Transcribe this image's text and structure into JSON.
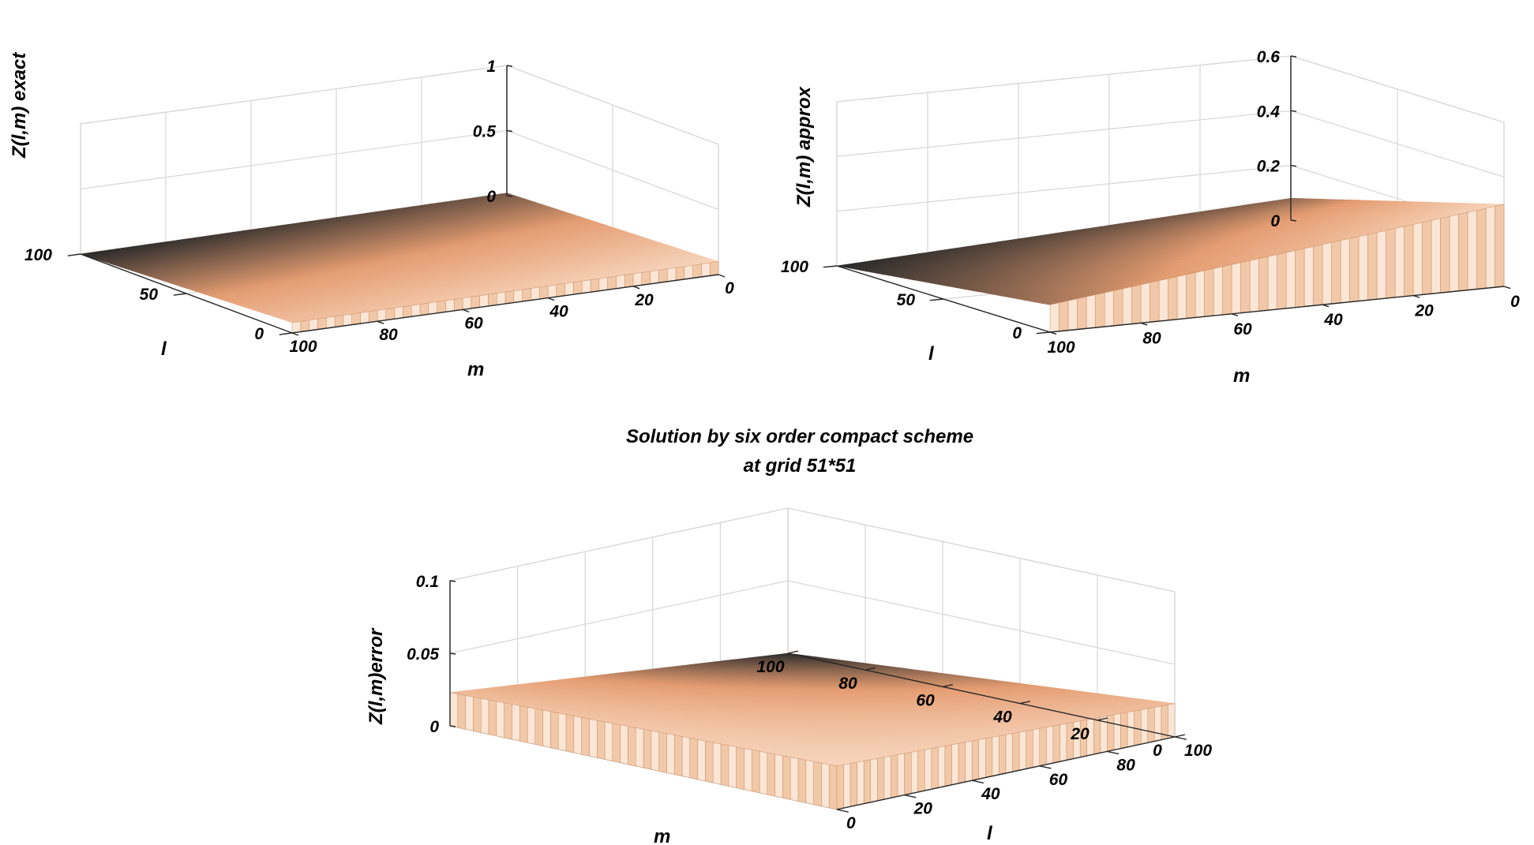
{
  "chart_data": [
    {
      "type": "surface3d",
      "name": "exact",
      "zlabel": "Z(l,m) exact",
      "xlabel": "m",
      "ylabel": "l",
      "zlim": [
        0,
        1
      ],
      "zticks": [
        "0",
        "0.5",
        "1"
      ],
      "m_ticks": [
        "0",
        "20",
        "40",
        "60",
        "80",
        "100"
      ],
      "l_ticks": [
        "0",
        "50",
        "100"
      ],
      "z_corners": {
        "m0_l0": 0.1,
        "m100_l0": 0.08,
        "m100_l100": 0.0,
        "m0_l100": 0.02
      }
    },
    {
      "type": "surface3d",
      "name": "approx",
      "zlabel": "Z(l,m) approx",
      "xlabel": "m",
      "ylabel": "l",
      "zlim": [
        0,
        0.6
      ],
      "zticks": [
        "0",
        "0.2",
        "0.4",
        "0.6"
      ],
      "m_ticks": [
        "0",
        "20",
        "40",
        "60",
        "80",
        "100"
      ],
      "l_ticks": [
        "0",
        "50",
        "100"
      ],
      "z_corners": {
        "m0_l0": 0.3,
        "m100_l0": 0.1,
        "m100_l100": 0.0,
        "m0_l100": 0.08
      }
    },
    {
      "type": "surface3d",
      "name": "error",
      "title_line1": "Solution by six order compact scheme",
      "title_line2": "at grid 51*51",
      "zlabel": "Z(l,m)error",
      "xlabel": "m",
      "ylabel": "l",
      "zlim": [
        0,
        0.1
      ],
      "zticks": [
        "0",
        "0.05",
        "0.1"
      ],
      "m_ticks": [
        "0",
        "20",
        "40",
        "60",
        "80",
        "100"
      ],
      "l_ticks": [
        "0",
        "20",
        "40",
        "60",
        "80",
        "100"
      ],
      "z_corners": {
        "m0_l0": 0.03,
        "m100_l0": 0.023,
        "m100_l100": 0.0,
        "m0_l100": 0.023
      }
    }
  ],
  "colors": {
    "surface_dark": "#2a2a2a",
    "surface_light": "#f7d5bc",
    "surface_mid": "#e59d72",
    "grid": "#d9d9d9",
    "axis": "#262626"
  }
}
